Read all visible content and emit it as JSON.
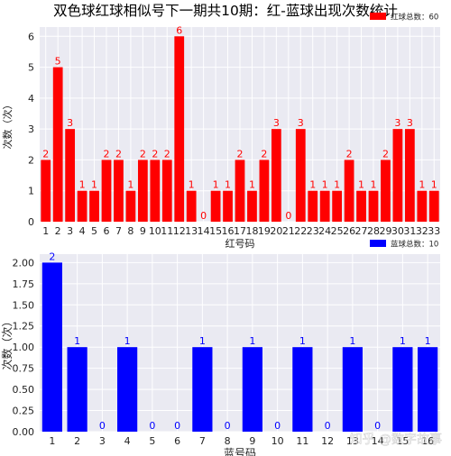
{
  "title": "双色球红球相似号下一期共10期：红-蓝球出现次数统计",
  "watermark": "知乎 @数字故事",
  "chart_data": [
    {
      "type": "bar",
      "color": "#ff0000",
      "label_color": "#ff0000",
      "legend": "红球总数：60",
      "legend_position": "top-right",
      "xlabel": "红号码",
      "ylabel": "次数（次）",
      "ylim": [
        0,
        6.3
      ],
      "yticks": [
        "0",
        "1",
        "2",
        "3",
        "4",
        "5",
        "6"
      ],
      "grid": true,
      "categories": [
        "1",
        "2",
        "3",
        "4",
        "5",
        "6",
        "7",
        "8",
        "9",
        "10",
        "11",
        "12",
        "13",
        "14",
        "15",
        "16",
        "17",
        "18",
        "19",
        "20",
        "21",
        "22",
        "23",
        "24",
        "25",
        "26",
        "27",
        "28",
        "29",
        "30",
        "31",
        "32",
        "33"
      ],
      "values": [
        2,
        5,
        3,
        1,
        1,
        2,
        2,
        1,
        2,
        2,
        2,
        6,
        1,
        0,
        1,
        1,
        2,
        1,
        2,
        3,
        0,
        3,
        1,
        1,
        1,
        2,
        1,
        1,
        2,
        3,
        3,
        1,
        1
      ]
    },
    {
      "type": "bar",
      "color": "#0000ff",
      "label_color": "#0000ff",
      "legend": "蓝球总数：10",
      "legend_position": "top-right",
      "xlabel": "蓝号码",
      "ylabel": "次数（次）",
      "ylim": [
        0,
        2.1
      ],
      "yticks": [
        "0.00",
        "0.25",
        "0.50",
        "0.75",
        "1.00",
        "1.25",
        "1.50",
        "1.75",
        "2.00"
      ],
      "grid": true,
      "categories": [
        "1",
        "2",
        "3",
        "4",
        "5",
        "6",
        "7",
        "8",
        "9",
        "10",
        "11",
        "12",
        "13",
        "14",
        "15",
        "16"
      ],
      "values": [
        2,
        1,
        0,
        1,
        0,
        0,
        1,
        0,
        1,
        0,
        1,
        0,
        1,
        0,
        1,
        1
      ]
    }
  ]
}
